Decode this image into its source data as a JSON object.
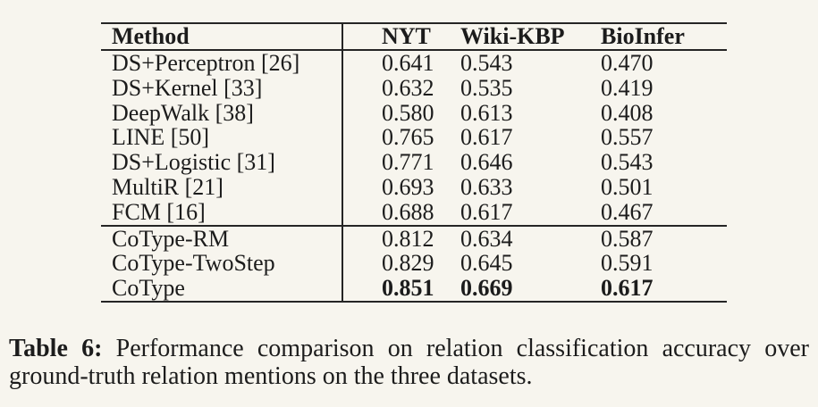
{
  "page": {
    "background_color": "#f7f5ee",
    "text_color": "#1c1c1c",
    "rule_color": "#252525"
  },
  "table": {
    "columns": [
      "Method",
      "NYT",
      "Wiki-KBP",
      "BioInfer"
    ],
    "groups": [
      {
        "name": "baseline-methods",
        "rows": [
          {
            "method": "DS+Perceptron [26]",
            "nyt": "0.641",
            "wiki_kbp": "0.543",
            "bioinfer": "0.470"
          },
          {
            "method": "DS+Kernel [33]",
            "nyt": "0.632",
            "wiki_kbp": "0.535",
            "bioinfer": "0.419"
          },
          {
            "method": "DeepWalk [38]",
            "nyt": "0.580",
            "wiki_kbp": "0.613",
            "bioinfer": "0.408"
          },
          {
            "method": "LINE [50]",
            "nyt": "0.765",
            "wiki_kbp": "0.617",
            "bioinfer": "0.557"
          },
          {
            "method": "DS+Logistic [31]",
            "nyt": "0.771",
            "wiki_kbp": "0.646",
            "bioinfer": "0.543"
          },
          {
            "method": "MultiR [21]",
            "nyt": "0.693",
            "wiki_kbp": "0.633",
            "bioinfer": "0.501"
          },
          {
            "method": "FCM [16]",
            "nyt": "0.688",
            "wiki_kbp": "0.617",
            "bioinfer": "0.467"
          }
        ]
      },
      {
        "name": "cotype-variants",
        "rows": [
          {
            "method": "CoType-RM",
            "nyt": "0.812",
            "wiki_kbp": "0.634",
            "bioinfer": "0.587"
          },
          {
            "method": "CoType-TwoStep",
            "nyt": "0.829",
            "wiki_kbp": "0.645",
            "bioinfer": "0.591"
          },
          {
            "method": "CoType",
            "nyt": "0.851",
            "wiki_kbp": "0.669",
            "bioinfer": "0.617"
          }
        ]
      }
    ]
  },
  "caption": {
    "label": "Table 6:",
    "line1": "Performance comparison on relation classification accuracy over",
    "line2": "ground-truth relation mentions on the three datasets."
  }
}
